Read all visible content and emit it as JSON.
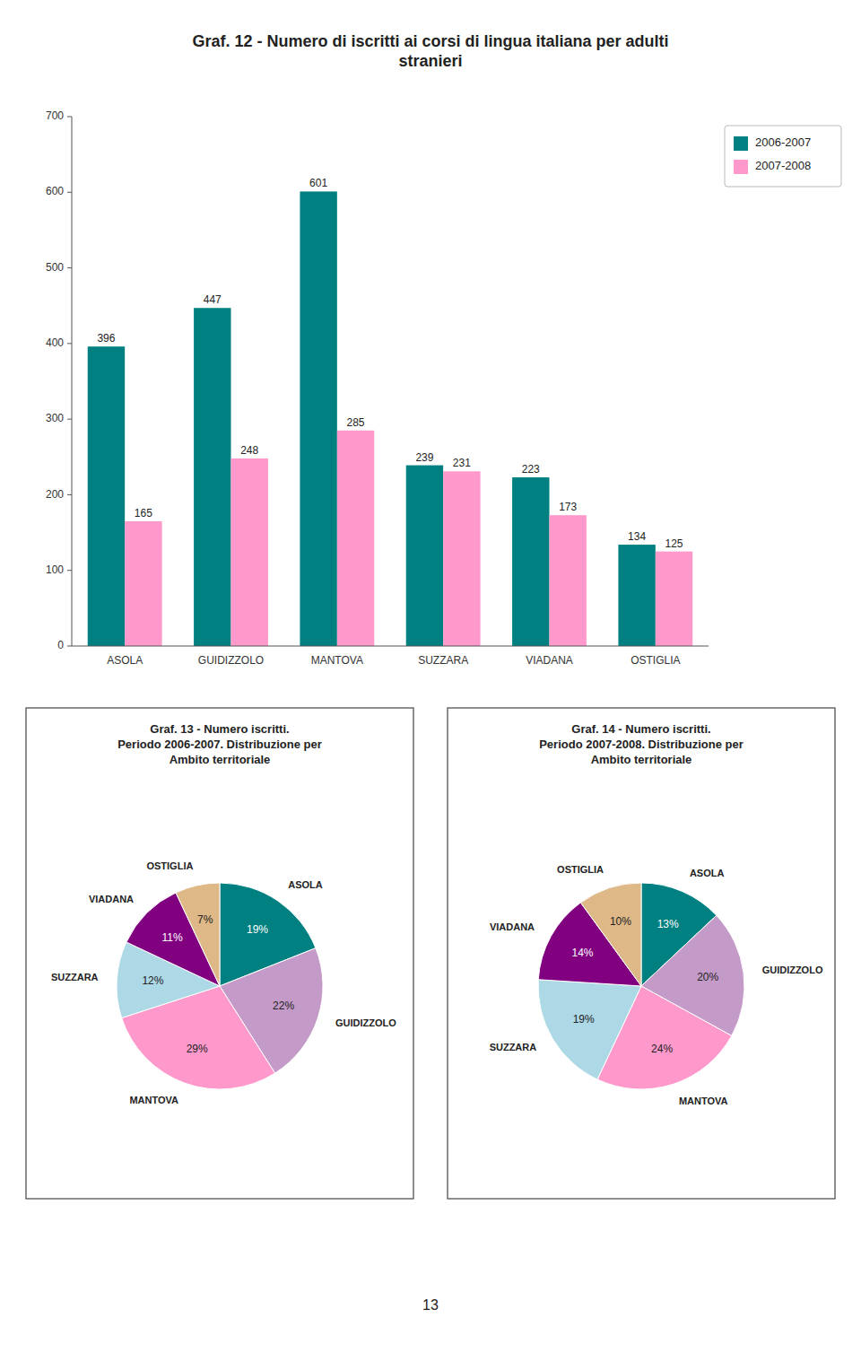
{
  "chart_data": [
    {
      "type": "bar",
      "title": "Graf. 12 - Numero di iscritti ai corsi di lingua italiana per adulti\nstranieri",
      "categories": [
        "ASOLA",
        "GUIDIZZOLO",
        "MANTOVA",
        "SUZZARA",
        "VIADANA",
        "OSTIGLIA"
      ],
      "series": [
        {
          "name": "2006-2007",
          "color": "#008080",
          "values": [
            396,
            447,
            601,
            239,
            223,
            134
          ]
        },
        {
          "name": "2007-2008",
          "color": "#FF99CC",
          "values": [
            165,
            248,
            285,
            231,
            173,
            125
          ]
        }
      ],
      "ylim": [
        0,
        700
      ],
      "yticks": [
        0,
        100,
        200,
        300,
        400,
        500,
        600,
        700
      ],
      "data_labels": true,
      "legend": "right",
      "grid": false,
      "annotations": [
        "13"
      ]
    },
    {
      "type": "pie",
      "title": "Graf. 13 - Numero iscritti.\nPeriodo 2006-2007. Distribuzione per\nAmbito territoriale",
      "categories": [
        "ASOLA",
        "GUIDIZZOLO",
        "MANTOVA",
        "SUZZARA",
        "VIADANA",
        "OSTIGLIA"
      ],
      "values": [
        19,
        22,
        29,
        12,
        11,
        7
      ],
      "value_labels": [
        "19%",
        "22%",
        "29%",
        "12%",
        "11%",
        "7%"
      ],
      "colors": [
        "#008080",
        "#C49AC8",
        "#FF99CC",
        "#ADD8E6",
        "#800080",
        "#DEB887"
      ],
      "data_labels": true
    },
    {
      "type": "pie",
      "title": "Graf. 14 - Numero iscritti.\nPeriodo 2007-2008. Distribuzione per\nAmbito territoriale",
      "categories": [
        "ASOLA",
        "GUIDIZZOLO",
        "MANTOVA",
        "SUZZARA",
        "VIADANA",
        "OSTIGLIA"
      ],
      "values": [
        13,
        20,
        24,
        19,
        14,
        10
      ],
      "value_labels": [
        "13%",
        "20%",
        "24%",
        "19%",
        "14%",
        "10%"
      ],
      "colors": [
        "#008080",
        "#C49AC8",
        "#FF99CC",
        "#ADD8E6",
        "#800080",
        "#DEB887"
      ],
      "data_labels": true
    }
  ]
}
